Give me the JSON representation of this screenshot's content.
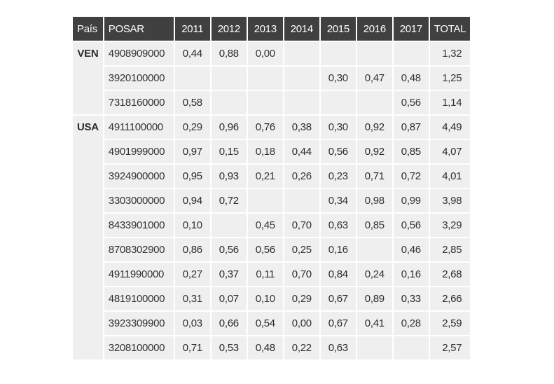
{
  "table": {
    "headers": [
      "País",
      "POSAR",
      "2011",
      "2012",
      "2013",
      "2014",
      "2015",
      "2016",
      "2017",
      "TOTAL"
    ],
    "groups": [
      {
        "country": "VEN",
        "rows": [
          {
            "code": "4908909000",
            "cells": [
              "0,44",
              "0,88",
              "0,00",
              "",
              "",
              "",
              ""
            ],
            "bold": [
              true,
              true,
              false,
              false,
              false,
              false,
              false
            ],
            "total": "1,32",
            "total_bold": false
          },
          {
            "code": "3920100000",
            "cells": [
              "",
              "",
              "",
              "",
              "0,30",
              "0,47",
              "0,48"
            ],
            "bold": [
              false,
              false,
              false,
              false,
              false,
              false,
              false
            ],
            "total": "1,25",
            "total_bold": false
          },
          {
            "code": "7318160000",
            "cells": [
              "0,58",
              "",
              "",
              "",
              "",
              "",
              "0,56"
            ],
            "bold": [
              true,
              false,
              false,
              false,
              false,
              false,
              false
            ],
            "total": "1,14",
            "total_bold": false
          }
        ]
      },
      {
        "country": "USA",
        "rows": [
          {
            "code": "4911100000",
            "cells": [
              "0,29",
              "0,96",
              "0,76",
              "0,38",
              "0,30",
              "0,92",
              "0,87"
            ],
            "bold": [
              false,
              true,
              true,
              true,
              false,
              true,
              true
            ],
            "total": "4,49",
            "total_bold": true
          },
          {
            "code": "4901999000",
            "cells": [
              "0,97",
              "0,15",
              "0,18",
              "0,44",
              "0,56",
              "0,92",
              "0,85"
            ],
            "bold": [
              true,
              false,
              false,
              true,
              true,
              true,
              true
            ],
            "total": "4,07",
            "total_bold": true
          },
          {
            "code": "3924900000",
            "cells": [
              "0,95",
              "0,93",
              "0,21",
              "0,26",
              "0,23",
              "0,71",
              "0,72"
            ],
            "bold": [
              true,
              true,
              false,
              false,
              false,
              true,
              true
            ],
            "total": "4,01",
            "total_bold": true
          },
          {
            "code": "3303000000",
            "cells": [
              "0,94",
              "0,72",
              "",
              "",
              "0,34",
              "0,98",
              "0,99"
            ],
            "bold": [
              true,
              true,
              false,
              false,
              false,
              false,
              false
            ],
            "total": "3,98",
            "total_bold": false
          },
          {
            "code": "8433901000",
            "cells": [
              "0,10",
              "",
              "0,45",
              "0,70",
              "0,63",
              "0,85",
              "0,56"
            ],
            "bold": [
              false,
              false,
              false,
              false,
              false,
              false,
              false
            ],
            "total": "3,29",
            "total_bold": false
          },
          {
            "code": "8708302900",
            "cells": [
              "0,86",
              "0,56",
              "0,56",
              "0,25",
              "0,16",
              "",
              "0,46"
            ],
            "bold": [
              true,
              true,
              true,
              false,
              false,
              false,
              false
            ],
            "total": "2,85",
            "total_bold": false
          },
          {
            "code": "4911990000",
            "cells": [
              "0,27",
              "0,37",
              "0,11",
              "0,70",
              "0,84",
              "0,24",
              "0,16"
            ],
            "bold": [
              false,
              true,
              false,
              true,
              true,
              false,
              false
            ],
            "total": "2,68",
            "total_bold": true
          },
          {
            "code": "4819100000",
            "cells": [
              "0,31",
              "0,07",
              "0,10",
              "0,29",
              "0,67",
              "0,89",
              "0,33"
            ],
            "bold": [
              false,
              false,
              false,
              false,
              true,
              true,
              true
            ],
            "total": "2,66",
            "total_bold": true
          },
          {
            "code": "3923309900",
            "cells": [
              "0,03",
              "0,66",
              "0,54",
              "0,00",
              "0,67",
              "0,41",
              "0,28"
            ],
            "bold": [
              false,
              true,
              true,
              false,
              true,
              true,
              false
            ],
            "total": "2,59",
            "total_bold": true
          },
          {
            "code": "3208100000",
            "cells": [
              "0,71",
              "0,53",
              "0,48",
              "0,22",
              "0,63",
              "",
              ""
            ],
            "bold": [
              true,
              true,
              true,
              false,
              true,
              false,
              false
            ],
            "total": "2,57",
            "total_bold": false
          }
        ]
      }
    ]
  }
}
